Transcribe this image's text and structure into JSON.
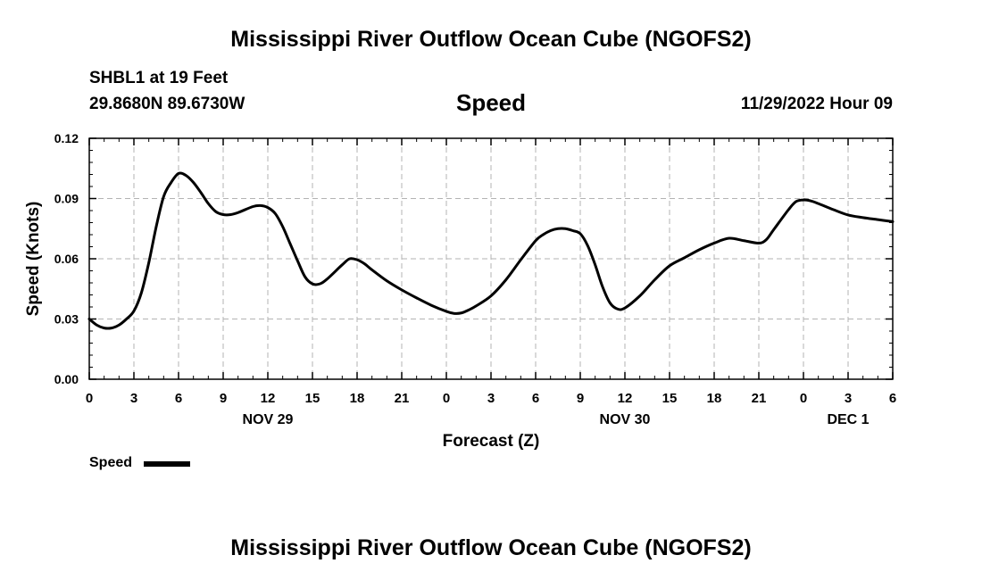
{
  "chart_data": {
    "type": "line",
    "title": "Mississippi River Outflow Ocean Cube (NGOFS2)",
    "footer_title": "Mississippi River Outflow Ocean Cube (NGOFS2)",
    "station": "SHBL1 at 19 Feet",
    "coordinates": "29.8680N  89.6730W",
    "subtitle": "Speed",
    "timestamp": "11/29/2022 Hour 09",
    "xlabel": "Forecast (Z)",
    "ylabel": "Speed (Knots)",
    "ylim": [
      0,
      0.12
    ],
    "xlim_hours": [
      0,
      54
    ],
    "yticks": [
      {
        "value": 0.0,
        "label": "0.00"
      },
      {
        "value": 0.03,
        "label": "0.03"
      },
      {
        "value": 0.06,
        "label": "0.06"
      },
      {
        "value": 0.09,
        "label": "0.09"
      },
      {
        "value": 0.12,
        "label": "0.12"
      }
    ],
    "xticks": [
      {
        "hour": 0,
        "label": "0"
      },
      {
        "hour": 3,
        "label": "3"
      },
      {
        "hour": 6,
        "label": "6"
      },
      {
        "hour": 9,
        "label": "9"
      },
      {
        "hour": 12,
        "label": "12"
      },
      {
        "hour": 15,
        "label": "15"
      },
      {
        "hour": 18,
        "label": "18"
      },
      {
        "hour": 21,
        "label": "21"
      },
      {
        "hour": 24,
        "label": "0"
      },
      {
        "hour": 27,
        "label": "3"
      },
      {
        "hour": 30,
        "label": "6"
      },
      {
        "hour": 33,
        "label": "9"
      },
      {
        "hour": 36,
        "label": "12"
      },
      {
        "hour": 39,
        "label": "15"
      },
      {
        "hour": 42,
        "label": "18"
      },
      {
        "hour": 45,
        "label": "21"
      },
      {
        "hour": 48,
        "label": "0"
      },
      {
        "hour": 51,
        "label": "3"
      },
      {
        "hour": 54,
        "label": "6"
      }
    ],
    "date_labels": [
      {
        "hour": 12,
        "label": "NOV 29"
      },
      {
        "hour": 36,
        "label": "NOV 30"
      },
      {
        "hour": 51,
        "label": "DEC 1"
      }
    ],
    "grid": true,
    "legend": {
      "label": "Speed",
      "position": "bottom-left"
    },
    "series": [
      {
        "name": "Speed",
        "color": "#000000",
        "points": [
          [
            0,
            0.03
          ],
          [
            0.5,
            0.027
          ],
          [
            1,
            0.0255
          ],
          [
            1.5,
            0.0255
          ],
          [
            2,
            0.027
          ],
          [
            2.5,
            0.03
          ],
          [
            3,
            0.034
          ],
          [
            3.5,
            0.043
          ],
          [
            4,
            0.058
          ],
          [
            4.5,
            0.076
          ],
          [
            5,
            0.091
          ],
          [
            5.5,
            0.098
          ],
          [
            6,
            0.1025
          ],
          [
            6.5,
            0.1015
          ],
          [
            7,
            0.098
          ],
          [
            7.5,
            0.093
          ],
          [
            8,
            0.0875
          ],
          [
            8.5,
            0.0835
          ],
          [
            9,
            0.082
          ],
          [
            9.5,
            0.082
          ],
          [
            10,
            0.083
          ],
          [
            11,
            0.086
          ],
          [
            11.5,
            0.0865
          ],
          [
            12,
            0.0855
          ],
          [
            12.5,
            0.0825
          ],
          [
            13,
            0.076
          ],
          [
            13.5,
            0.0675
          ],
          [
            14,
            0.059
          ],
          [
            14.5,
            0.051
          ],
          [
            15,
            0.0475
          ],
          [
            15.5,
            0.0475
          ],
          [
            16,
            0.05
          ],
          [
            17,
            0.057
          ],
          [
            17.5,
            0.06
          ],
          [
            18,
            0.0595
          ],
          [
            18.5,
            0.0575
          ],
          [
            19,
            0.0545
          ],
          [
            20,
            0.049
          ],
          [
            21,
            0.0445
          ],
          [
            22,
            0.0405
          ],
          [
            23,
            0.0368
          ],
          [
            24,
            0.0338
          ],
          [
            24.5,
            0.0328
          ],
          [
            25,
            0.033
          ],
          [
            25.5,
            0.0345
          ],
          [
            26,
            0.0365
          ],
          [
            27,
            0.0415
          ],
          [
            28,
            0.0495
          ],
          [
            29,
            0.0595
          ],
          [
            30,
            0.069
          ],
          [
            30.5,
            0.072
          ],
          [
            31,
            0.074
          ],
          [
            31.5,
            0.075
          ],
          [
            32,
            0.075
          ],
          [
            32.5,
            0.074
          ],
          [
            33,
            0.0725
          ],
          [
            33.5,
            0.0665
          ],
          [
            34,
            0.057
          ],
          [
            34.5,
            0.046
          ],
          [
            35,
            0.038
          ],
          [
            35.5,
            0.035
          ],
          [
            36,
            0.0355
          ],
          [
            37,
            0.0415
          ],
          [
            38,
            0.0495
          ],
          [
            39,
            0.0565
          ],
          [
            40,
            0.0605
          ],
          [
            41,
            0.0645
          ],
          [
            42,
            0.0678
          ],
          [
            43,
            0.0702
          ],
          [
            44,
            0.069
          ],
          [
            45,
            0.0678
          ],
          [
            45.5,
            0.0695
          ],
          [
            46,
            0.0745
          ],
          [
            47,
            0.0845
          ],
          [
            47.5,
            0.0885
          ],
          [
            48,
            0.0893
          ],
          [
            48.5,
            0.0888
          ],
          [
            49,
            0.0875
          ],
          [
            50,
            0.0845
          ],
          [
            51,
            0.0818
          ],
          [
            52,
            0.0805
          ],
          [
            53,
            0.0795
          ],
          [
            54,
            0.0785
          ]
        ]
      }
    ]
  }
}
